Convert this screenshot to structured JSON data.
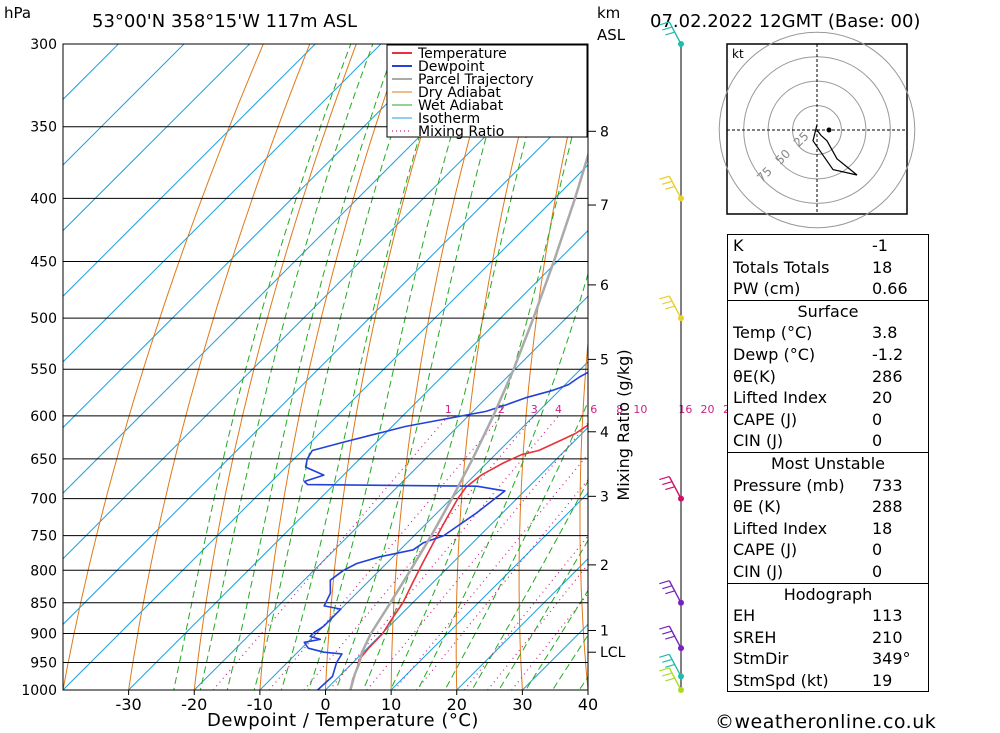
{
  "header": {
    "pressure_unit": "hPa",
    "location": "53°00'N  358°15'W  117m  ASL",
    "height_unit_line1": "km",
    "height_unit_line2": "ASL",
    "datetime": "07.02.2022  12GMT  (Base: 00)"
  },
  "chart_data": {
    "type": "line",
    "xlabel": "Dewpoint / Temperature (°C)",
    "ylabel": "hPa",
    "xlim": [
      -40,
      40
    ],
    "ylim": [
      1000,
      300
    ],
    "y_scale": "log",
    "x_ticks": [
      "-30",
      "-20",
      "-10",
      "0",
      "10",
      "20",
      "30",
      "40"
    ],
    "pressure_levels": [
      300,
      350,
      400,
      450,
      500,
      550,
      600,
      650,
      700,
      750,
      800,
      850,
      900,
      950,
      1000
    ],
    "height_km_labels": [
      {
        "label": "8",
        "p": 353
      },
      {
        "label": "7",
        "p": 405
      },
      {
        "label": "6",
        "p": 470
      },
      {
        "label": "5",
        "p": 540
      },
      {
        "label": "4",
        "p": 618
      },
      {
        "label": "3",
        "p": 697
      },
      {
        "label": "2",
        "p": 792
      },
      {
        "label": "1",
        "p": 895
      },
      {
        "label": "LCL",
        "p": 932
      }
    ],
    "mixing_ratio_axis_label": "Mixing Ratio (g/kg)",
    "mixing_ratio_labels": [
      "1",
      "2",
      "3",
      "4",
      "6",
      "8",
      "10",
      "16",
      "20",
      "25"
    ],
    "legend": [
      "Temperature",
      "Dewpoint",
      "Parcel Trajectory",
      "Dry Adiabat",
      "Wet Adiabat",
      "Isotherm",
      "Mixing Ratio"
    ],
    "legend_placement": "top-right",
    "colors": {
      "temperature": "#e8313a",
      "dewpoint": "#2341d8",
      "parcel": "#aaaaaa",
      "dry_adiabat": "#e07818",
      "wet_adiabat": "#22aa22",
      "isotherm": "#1fa0e0",
      "mixing_ratio": "#cc2288"
    },
    "series": [
      {
        "name": "Temperature",
        "points": [
          [
            3.8,
            1000
          ],
          [
            2.5,
            980
          ],
          [
            1.5,
            960
          ],
          [
            0.5,
            945
          ],
          [
            0.2,
            925
          ],
          [
            0.1,
            900
          ],
          [
            -0.6,
            880
          ],
          [
            -1.5,
            850
          ],
          [
            -3,
            820
          ],
          [
            -4.5,
            790
          ],
          [
            -6,
            760
          ],
          [
            -7.5,
            730
          ],
          [
            -9,
            700
          ],
          [
            -9.5,
            685
          ],
          [
            -9,
            670
          ],
          [
            -7.5,
            655
          ],
          [
            -6,
            645
          ],
          [
            -4,
            640
          ],
          [
            -2.5,
            630
          ],
          [
            -1,
            620
          ],
          [
            0,
            605
          ],
          [
            -2,
            590
          ],
          [
            -5,
            575
          ],
          [
            -6.5,
            560
          ],
          [
            -7.5,
            540
          ],
          [
            -10,
            520
          ],
          [
            -11.5,
            505
          ],
          [
            -12,
            500
          ],
          [
            -13,
            490
          ],
          [
            -13,
            475
          ],
          [
            -14.5,
            460
          ],
          [
            -16,
            445
          ],
          [
            -17.5,
            430
          ],
          [
            -19,
            415
          ],
          [
            -21,
            400
          ],
          [
            -23,
            385
          ],
          [
            -25.5,
            370
          ],
          [
            -28,
            355
          ],
          [
            -30.5,
            340
          ],
          [
            -34,
            325
          ],
          [
            -36,
            315
          ],
          [
            -39,
            300
          ]
        ]
      },
      {
        "name": "Dewpoint",
        "points": [
          [
            -1.2,
            1000
          ],
          [
            -1,
            975
          ],
          [
            -2.5,
            950
          ],
          [
            -3,
            935
          ],
          [
            -6,
            932
          ],
          [
            -9,
            925
          ],
          [
            -10.5,
            915
          ],
          [
            -8.5,
            910
          ],
          [
            -10.5,
            905
          ],
          [
            -10.5,
            898
          ],
          [
            -10,
            888
          ],
          [
            -10,
            870
          ],
          [
            -10,
            860
          ],
          [
            -13,
            855
          ],
          [
            -14,
            835
          ],
          [
            -16,
            815
          ],
          [
            -15.5,
            800
          ],
          [
            -14.5,
            790
          ],
          [
            -12,
            780
          ],
          [
            -8,
            770
          ],
          [
            -7.5,
            760
          ],
          [
            -5.5,
            750
          ],
          [
            -5,
            740
          ],
          [
            -4,
            720
          ],
          [
            -3.5,
            705
          ],
          [
            -3,
            690
          ],
          [
            -8,
            684
          ],
          [
            -34,
            682
          ],
          [
            -35,
            678
          ],
          [
            -33,
            670
          ],
          [
            -37,
            660
          ],
          [
            -38,
            650
          ],
          [
            -38.5,
            640
          ],
          [
            -35,
            630
          ],
          [
            -28,
            612
          ],
          [
            -18,
            595
          ],
          [
            -16,
            588
          ],
          [
            -14,
            580
          ],
          [
            -11,
            572
          ],
          [
            -9.5,
            566
          ],
          [
            -9,
            558
          ],
          [
            -8,
            550
          ],
          [
            -9.5,
            540
          ],
          [
            -8,
            530
          ],
          [
            -7,
            520
          ],
          [
            -5,
            505
          ],
          [
            -4,
            500
          ],
          [
            -12,
            490
          ],
          [
            -17,
            480
          ],
          [
            -18,
            478
          ],
          [
            -15.5,
            470
          ],
          [
            -14,
            465
          ],
          [
            -12.5,
            455
          ],
          [
            -12,
            450
          ],
          [
            -14,
            440
          ],
          [
            -14.5,
            430
          ],
          [
            -15,
            420
          ],
          [
            -14.5,
            410
          ],
          [
            -17.5,
            402
          ],
          [
            -17.5,
            395
          ],
          [
            -20,
            380
          ],
          [
            -18,
            370
          ],
          [
            -17,
            360
          ],
          [
            -19,
            350
          ],
          [
            -20,
            335
          ],
          [
            -18,
            323
          ],
          [
            -18,
            315
          ],
          [
            -20,
            310
          ],
          [
            -20.5,
            300
          ]
        ]
      },
      {
        "name": "Parcel Trajectory",
        "points": [
          [
            3.8,
            1000
          ],
          [
            2,
            970
          ],
          [
            1,
            950
          ],
          [
            -0.2,
            932
          ],
          [
            -1.7,
            900
          ],
          [
            -3.4,
            850
          ],
          [
            -5.3,
            800
          ],
          [
            -7.4,
            750
          ],
          [
            -9.9,
            700
          ],
          [
            -12.8,
            650
          ],
          [
            -16.2,
            600
          ],
          [
            -20.2,
            550
          ],
          [
            -25,
            500
          ],
          [
            -30.5,
            450
          ],
          [
            -36.9,
            400
          ],
          [
            -44.5,
            350
          ],
          [
            -53.5,
            300
          ]
        ]
      }
    ],
    "hodograph": {
      "unit": "kt",
      "ring_labels": [
        "25",
        "50",
        "75"
      ],
      "points": [
        [
          0,
          0
        ],
        [
          2,
          -3
        ],
        [
          5,
          -6
        ],
        [
          10,
          -16
        ],
        [
          20,
          -25
        ],
        [
          8,
          -22
        ],
        [
          -2,
          -6
        ],
        [
          0,
          3
        ]
      ]
    },
    "wind_barbs": [
      {
        "p": 300,
        "color": "#22bbaa"
      },
      {
        "p": 400,
        "color": "#e8d030"
      },
      {
        "p": 500,
        "color": "#e8d030"
      },
      {
        "p": 700,
        "color": "#cc1166"
      },
      {
        "p": 850,
        "color": "#7722bb"
      },
      {
        "p": 925,
        "color": "#7722bb"
      },
      {
        "p": 975,
        "color": "#22bbaa"
      },
      {
        "p": 1000,
        "color": "#aadd22"
      }
    ]
  },
  "indices": {
    "k_label": "K",
    "k_value": "-1",
    "tt_label": "Totals Totals",
    "tt_value": "18",
    "pw_label": "PW (cm)",
    "pw_value": "0.66"
  },
  "surface": {
    "title": "Surface",
    "temp_label": "Temp (°C)",
    "temp_value": "3.8",
    "dewp_label": "Dewp (°C)",
    "dewp_value": "-1.2",
    "theta_label": "θE(K)",
    "theta_value": "286",
    "li_label": "Lifted Index",
    "li_value": "20",
    "cape_label": "CAPE (J)",
    "cape_value": "0",
    "cin_label": "CIN (J)",
    "cin_value": "0"
  },
  "most_unstable": {
    "title": "Most Unstable",
    "pressure_label": "Pressure (mb)",
    "pressure_value": "733",
    "theta_label": "θE (K)",
    "theta_value": "288",
    "li_label": "Lifted Index",
    "li_value": "18",
    "cape_label": "CAPE (J)",
    "cape_value": "0",
    "cin_label": "CIN (J)",
    "cin_value": "0"
  },
  "hodograph_table": {
    "title": "Hodograph",
    "eh_label": "EH",
    "eh_value": "113",
    "sreh_label": "SREH",
    "sreh_value": "210",
    "stmdir_label": "StmDir",
    "stmdir_value": "349°",
    "stmspd_label": "StmSpd (kt)",
    "stmspd_value": "19"
  },
  "footer": {
    "copyright": "©weatheronline.co.uk"
  }
}
